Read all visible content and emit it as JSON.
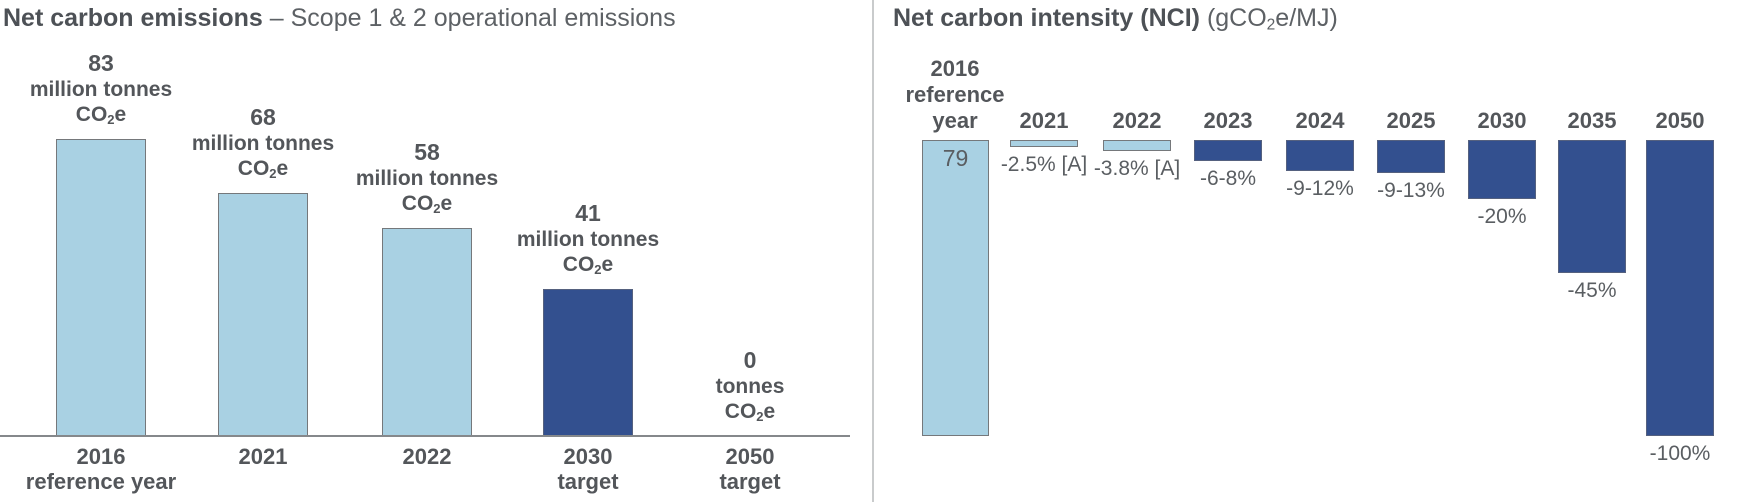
{
  "colors": {
    "light_blue": "#a9d1e3",
    "dark_blue": "#33508f",
    "bar_border": "#75787b",
    "text": "#53565a",
    "axis_line": "#85888b",
    "divider": "#c9cbcc"
  },
  "left_chart": {
    "title": "Net carbon emissions",
    "subtitle": "– Scope 1 & 2 operational emissions"
  },
  "right_chart": {
    "title": "Net carbon intensity (NCI)",
    "unit": "(gCO₂e/MJ)"
  },
  "chart_data": [
    {
      "type": "bar",
      "title": "Net carbon emissions – Scope 1 & 2 operational emissions",
      "ylabel": "million tonnes CO₂e",
      "ylim": [
        0,
        100
      ],
      "grid": false,
      "categories": [
        "2016 reference year",
        "2021",
        "2022",
        "2030 target",
        "2050 target"
      ],
      "values": [
        83,
        68,
        58,
        41,
        0
      ],
      "bars": [
        {
          "category": "2016 reference year",
          "axis_label_lines": [
            "2016",
            "reference year"
          ],
          "value": 83,
          "value_label_lines": [
            "83",
            "million tonnes",
            "CO₂e"
          ],
          "color": "light_blue"
        },
        {
          "category": "2021",
          "axis_label_lines": [
            "2021"
          ],
          "value": 68,
          "value_label_lines": [
            "68",
            "million tonnes",
            "CO₂e"
          ],
          "color": "light_blue"
        },
        {
          "category": "2022",
          "axis_label_lines": [
            "2022"
          ],
          "value": 58,
          "value_label_lines": [
            "58",
            "million tonnes",
            "CO₂e"
          ],
          "color": "light_blue"
        },
        {
          "category": "2030 target",
          "axis_label_lines": [
            "2030",
            "target"
          ],
          "value": 41,
          "value_label_lines": [
            "41",
            "million tonnes",
            "CO₂e"
          ],
          "color": "dark_blue"
        },
        {
          "category": "2050 target",
          "axis_label_lines": [
            "2050",
            "target"
          ],
          "value": 0,
          "value_label_lines": [
            "0",
            "tonnes",
            "CO₂e"
          ],
          "color": "none"
        }
      ]
    },
    {
      "type": "bar",
      "title": "Net carbon intensity (NCI) (gCO₂e/MJ)",
      "direction": "downward-from-top-baseline",
      "grid": false,
      "reference_bar": {
        "category": "2016 reference year",
        "axis_label_lines": [
          "2016",
          "reference",
          "year"
        ],
        "value": 79,
        "value_label": "79",
        "reduction_pct": 100,
        "color": "light_blue"
      },
      "bars": [
        {
          "category": "2021",
          "reduction_pct": 2.5,
          "label": "-2.5% [A]",
          "color": "light_blue"
        },
        {
          "category": "2022",
          "reduction_pct": 3.8,
          "label": "-3.8% [A]",
          "color": "light_blue"
        },
        {
          "category": "2023",
          "reduction_pct": 7,
          "label": "-6-8%",
          "color": "dark_blue"
        },
        {
          "category": "2024",
          "reduction_pct": 10.5,
          "label": "-9-12%",
          "color": "dark_blue"
        },
        {
          "category": "2025",
          "reduction_pct": 11,
          "label": "-9-13%",
          "color": "dark_blue"
        },
        {
          "category": "2030",
          "reduction_pct": 20,
          "label": "-20%",
          "color": "dark_blue"
        },
        {
          "category": "2035",
          "reduction_pct": 45,
          "label": "-45%",
          "color": "dark_blue"
        },
        {
          "category": "2050",
          "reduction_pct": 100,
          "label": "-100%",
          "color": "dark_blue"
        }
      ]
    }
  ]
}
